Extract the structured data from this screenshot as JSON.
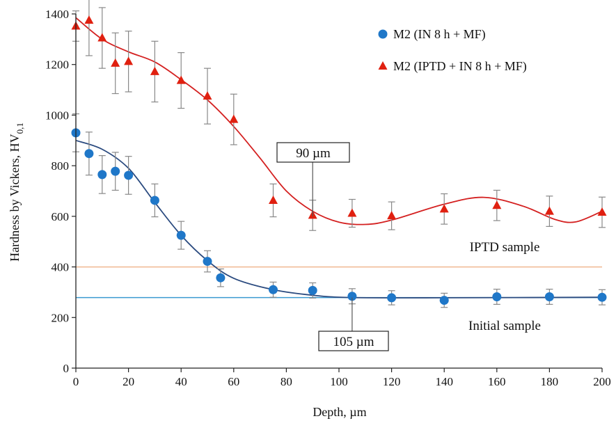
{
  "chart_data": {
    "type": "scatter",
    "xlabel": "Depth, µm",
    "ylabel_main": "Hardness by Vickers, HV",
    "ylabel_sub": "0,1",
    "xlim": [
      0,
      200
    ],
    "ylim": [
      0,
      1400
    ],
    "x_ticks": [
      0,
      20,
      40,
      60,
      80,
      100,
      120,
      140,
      160,
      180,
      200
    ],
    "y_ticks": [
      0,
      200,
      400,
      600,
      800,
      1000,
      1200,
      1400
    ],
    "grid": false,
    "legend_position": "top-right",
    "series": [
      {
        "name": "M2 (IN 8 h + MF)",
        "marker": "circle",
        "color": "#1f77c8",
        "fit_color": "#2a4a7f",
        "x": [
          0,
          5,
          10,
          15,
          20,
          30,
          40,
          50,
          55,
          75,
          90,
          105,
          120,
          140,
          160,
          180,
          200
        ],
        "y": [
          930,
          848,
          765,
          778,
          762,
          663,
          525,
          422,
          357,
          310,
          307,
          284,
          278,
          268,
          282,
          282,
          280
        ],
        "err": [
          75,
          85,
          75,
          75,
          75,
          65,
          55,
          42,
          35,
          30,
          30,
          30,
          28,
          28,
          30,
          30,
          30
        ]
      },
      {
        "name": "M2 (IPTD + IN 8 h + MF)",
        "marker": "triangle",
        "color": "#e02010",
        "fit_color": "#d42020",
        "x": [
          0,
          5,
          10,
          15,
          20,
          30,
          40,
          50,
          60,
          75,
          90,
          105,
          120,
          140,
          160,
          180,
          200
        ],
        "y": [
          1352,
          1375,
          1305,
          1205,
          1212,
          1172,
          1137,
          1075,
          983,
          663,
          604,
          612,
          602,
          629,
          643,
          620,
          616
        ],
        "err": [
          60,
          140,
          120,
          120,
          120,
          120,
          110,
          110,
          100,
          65,
          60,
          55,
          55,
          60,
          60,
          60,
          60
        ]
      }
    ],
    "reference_lines": [
      {
        "label": "IPTD sample",
        "y": 400,
        "color": "#f0b890"
      },
      {
        "label": "Initial sample",
        "y": 279,
        "color": "#3a9ad0"
      }
    ],
    "annotations": [
      {
        "text": "90 µm",
        "x": 90
      },
      {
        "text": "105 µm",
        "x": 105
      }
    ]
  }
}
